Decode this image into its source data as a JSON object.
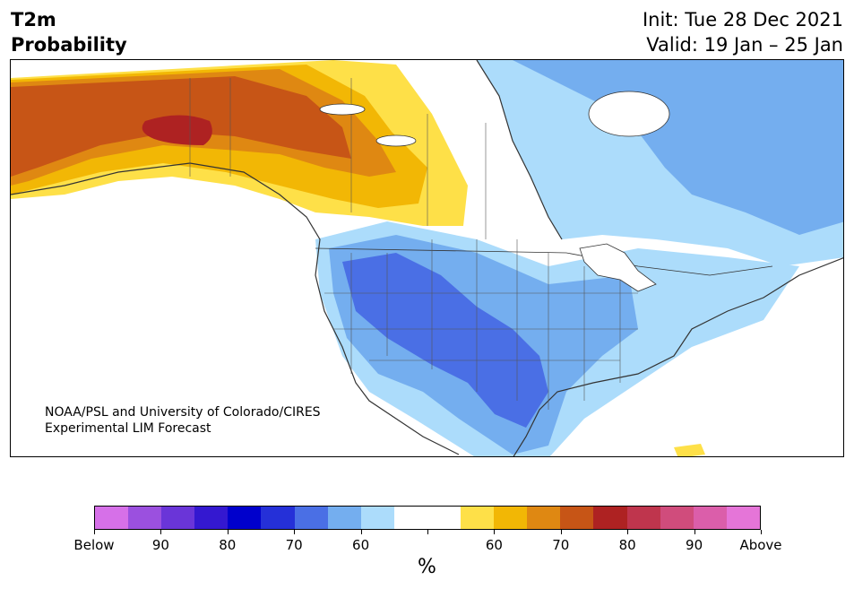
{
  "header": {
    "title_line1": "T2m",
    "title_line2": "Probability",
    "init": "Init: Tue 28 Dec 2021",
    "valid": "Valid: 19 Jan – 25 Jan"
  },
  "map": {
    "credit_line1": "NOAA/PSL and University of Colorado/CIRES",
    "credit_line2": "Experimental LIM Forecast"
  },
  "colorbar": {
    "colors": [
      "#d670e8",
      "#9b50df",
      "#6a35d8",
      "#3418d0",
      "#0000cc",
      "#2530d8",
      "#4a6fe5",
      "#74aeef",
      "#acdcfb",
      "#ffffff",
      "#ffffff",
      "#fee048",
      "#f2b705",
      "#df8812",
      "#c75516",
      "#ae2222",
      "#bf354d",
      "#d04c7c",
      "#db5eaa",
      "#e575d8"
    ],
    "tick_labels": [
      "Below",
      "90",
      "80",
      "70",
      "60",
      "",
      "60",
      "70",
      "80",
      "90",
      "Above"
    ],
    "unit": "%"
  }
}
